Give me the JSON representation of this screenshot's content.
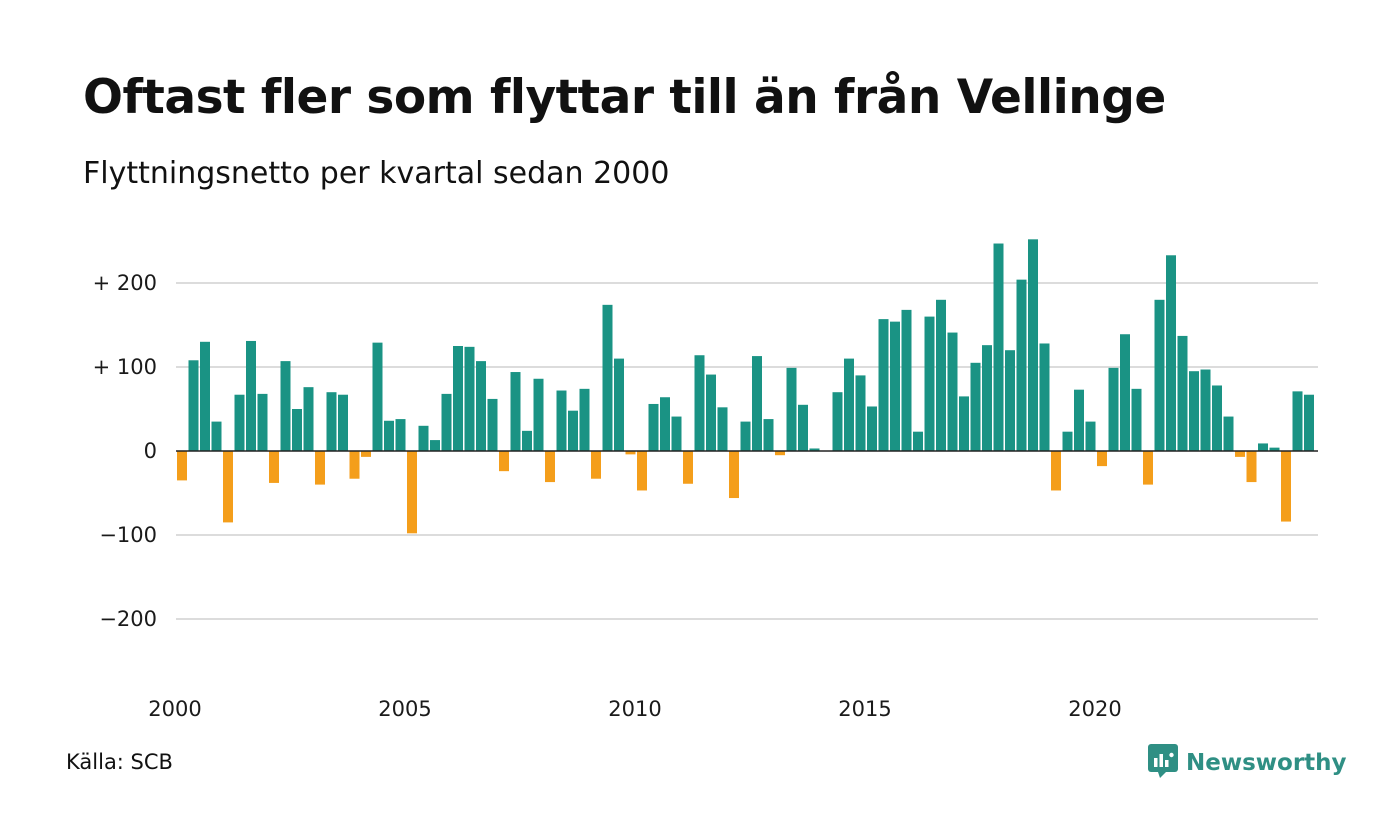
{
  "title": "Oftast fler som flyttar till än från Vellinge",
  "subtitle": "Flyttningsnetto per kvartal sedan 2000",
  "source": "Källa: SCB",
  "brand": {
    "name": "Newsworthy",
    "icon": "newsworthy-logo-icon",
    "color": "#2f8f84"
  },
  "colors": {
    "positive": "#1a9384",
    "negative": "#f49e1b",
    "grid": "#dcdcdc",
    "zero_line": "#222222"
  },
  "chart_data": {
    "type": "bar",
    "title": "Oftast fler som flyttar till än från Vellinge",
    "subtitle": "Flyttningsnetto per kvartal sedan 2000",
    "xlabel": "",
    "ylabel": "",
    "start_quarter": "2000Q1",
    "xticks": [
      "2000",
      "2005",
      "2010",
      "2015",
      "2020"
    ],
    "yticks": [
      {
        "value": 200,
        "label": "+ 200"
      },
      {
        "value": 100,
        "label": "+ 100"
      },
      {
        "value": 0,
        "label": "0"
      },
      {
        "value": -100,
        "label": "−100"
      },
      {
        "value": -200,
        "label": "−200"
      }
    ],
    "ylim": [
      -270,
      270
    ],
    "grid": true,
    "values": [
      -35,
      108,
      130,
      35,
      -85,
      67,
      131,
      68,
      -38,
      107,
      50,
      76,
      -40,
      70,
      67,
      -33,
      -7,
      129,
      36,
      38,
      -98,
      30,
      13,
      68,
      125,
      124,
      107,
      62,
      -24,
      94,
      24,
      86,
      -37,
      72,
      48,
      74,
      -33,
      174,
      110,
      -4,
      -47,
      56,
      64,
      41,
      -39,
      114,
      91,
      52,
      -56,
      35,
      113,
      38,
      -5,
      99,
      55,
      3,
      0,
      70,
      110,
      90,
      53,
      157,
      154,
      168,
      23,
      160,
      180,
      141,
      65,
      105,
      126,
      247,
      120,
      204,
      252,
      128,
      -47,
      23,
      73,
      35,
      -18,
      99,
      139,
      74,
      -40,
      180,
      233,
      137,
      95,
      97,
      78,
      41,
      -7,
      -37,
      9,
      4,
      -84,
      71,
      67
    ]
  }
}
